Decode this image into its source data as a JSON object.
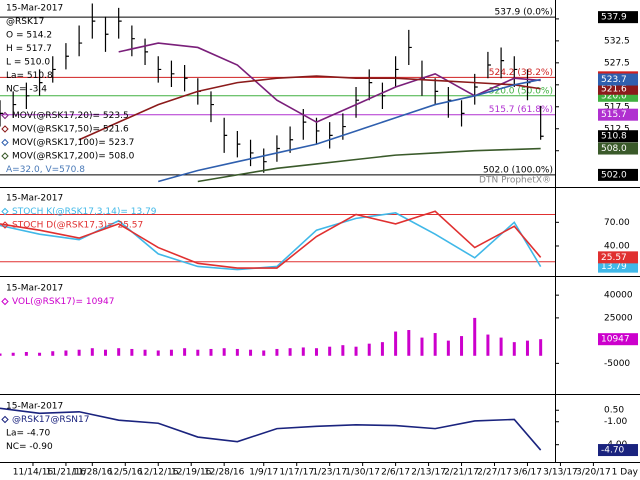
{
  "chart_data": [
    {
      "type": "ohlc",
      "header": [
        "15-Mar-2017",
        "@RSK17",
        "O = 514.2",
        "H = 517.7",
        "L = 510.0",
        "La= 510.8",
        "NC= -3.4"
      ],
      "color": "#000000",
      "x": [
        0,
        2,
        4,
        6,
        8,
        10,
        12,
        14,
        16,
        18,
        20,
        22,
        24,
        26,
        28,
        30,
        32,
        34,
        36,
        38,
        40,
        42,
        44,
        46,
        48,
        50,
        52,
        54,
        56,
        58,
        60,
        62,
        64,
        66,
        68,
        70,
        72,
        74,
        76,
        78,
        80,
        82
      ],
      "high": [
        519,
        521,
        523,
        526,
        529,
        532,
        536,
        541,
        538,
        540,
        536,
        533,
        529,
        528,
        527,
        524,
        521,
        515,
        512,
        510,
        508,
        511,
        513,
        517,
        515,
        514,
        516,
        522,
        526,
        523,
        529,
        535,
        528,
        524,
        522,
        519,
        525,
        530,
        531,
        529,
        526,
        517.7
      ],
      "low": [
        513,
        515,
        517,
        520,
        523,
        526,
        529,
        533,
        530,
        533,
        529,
        527,
        523,
        522,
        521,
        518,
        514,
        507,
        506,
        504,
        502.5,
        505,
        507,
        510,
        509,
        508,
        510,
        515,
        519,
        517,
        522,
        527,
        520,
        518,
        515,
        513,
        518,
        524,
        524,
        522,
        519,
        510.0
      ],
      "close": [
        516,
        518,
        520,
        523,
        526,
        529,
        532,
        537,
        534,
        537,
        533,
        530,
        526,
        525,
        524,
        521,
        518,
        511,
        509,
        507,
        505,
        508,
        510,
        514,
        512,
        511,
        513,
        519,
        523,
        520,
        526,
        531,
        524,
        521,
        519,
        516,
        522,
        527,
        528,
        526,
        523,
        510.8
      ],
      "series": [
        {
          "name": "MOV(@RSK17,20)= 523.5",
          "color": "#7a1f7a",
          "box": "523.5",
          "x": [
            0,
            6,
            12,
            18,
            24,
            30,
            36,
            42,
            48,
            54,
            60,
            66,
            72,
            78,
            82
          ],
          "values": [
            null,
            null,
            null,
            530,
            532,
            531,
            527,
            519,
            514,
            518,
            522,
            525,
            520,
            524,
            523.5
          ]
        },
        {
          "name": "MOV(@RSK17,50)= 521.6",
          "color": "#8b1a1a",
          "box": "521.6",
          "x": [
            0,
            6,
            12,
            18,
            24,
            30,
            36,
            42,
            48,
            54,
            60,
            66,
            72,
            78,
            82
          ],
          "values": [
            null,
            null,
            510,
            514,
            518,
            521,
            523,
            524,
            524.5,
            524,
            524,
            523.5,
            523,
            522.5,
            521.6
          ]
        },
        {
          "name": "MOV(@RSK17,100)= 523.7",
          "color": "#2f5fae",
          "box": "523.7",
          "x": [
            0,
            6,
            12,
            18,
            24,
            30,
            36,
            42,
            48,
            54,
            60,
            66,
            72,
            78,
            82
          ],
          "values": [
            null,
            null,
            null,
            null,
            500.5,
            503,
            505,
            507,
            509,
            512,
            515,
            518,
            520,
            522.5,
            523.7
          ]
        },
        {
          "name": "MOV(@RSK17,200)= 508.0",
          "color": "#3a5a2a",
          "box": "508.0",
          "x": [
            0,
            6,
            12,
            18,
            24,
            30,
            36,
            42,
            48,
            54,
            60,
            66,
            72,
            78,
            82
          ],
          "values": [
            null,
            null,
            null,
            null,
            null,
            500.5,
            502,
            503.5,
            504.5,
            505.5,
            506.5,
            507,
            507.5,
            507.8,
            508.0
          ]
        }
      ],
      "levels": [
        {
          "value": 537.9,
          "label": "537.9 (0.0%)",
          "box": "537.9",
          "color": "#000000"
        },
        {
          "value": 524.2,
          "label": "524.2 (38.2%)",
          "box": "524.2",
          "color": "#d02020"
        },
        {
          "value": 520.0,
          "label": "520.0 (50.0%)",
          "box": "520.0",
          "color": "#40b040"
        },
        {
          "value": 515.7,
          "label": "515.7 (61.8%)",
          "box": "515.7",
          "color": "#b030d0"
        },
        {
          "value": 502.0,
          "label": "502.0 (100.0%)",
          "box": "502.0",
          "color": "#000000"
        }
      ],
      "notes": [
        "A=32.0, V=570.8"
      ],
      "watermark": "DTN ProphetX®",
      "xlim": [
        0,
        91
      ],
      "ylim": [
        499.7,
        541.8
      ],
      "yticks": [
        507.5,
        512.5,
        517.5,
        522.5,
        527.5,
        532.5,
        537.5
      ]
    },
    {
      "type": "line",
      "header": [
        "15-Mar-2017"
      ],
      "series": [
        {
          "name": "STOCH K(@RSK17,3,14)= 13.79",
          "color": "#40b8e8",
          "box": "13.79",
          "x": [
            0,
            6,
            12,
            18,
            24,
            30,
            36,
            42,
            48,
            54,
            60,
            66,
            72,
            78,
            82
          ],
          "values": [
            66,
            55,
            48,
            72,
            30,
            14,
            10,
            14,
            60,
            75,
            82,
            55,
            25,
            70,
            13.79
          ]
        },
        {
          "name": "STOCH D(@RSK17,3)= 25.57",
          "color": "#e03030",
          "box": "25.57",
          "x": [
            0,
            6,
            12,
            18,
            24,
            30,
            36,
            42,
            48,
            54,
            60,
            66,
            72,
            78,
            82
          ],
          "values": [
            68,
            60,
            50,
            68,
            38,
            18,
            12,
            12,
            52,
            80,
            68,
            84,
            38,
            65,
            25.57
          ]
        }
      ],
      "levels": [
        {
          "value": 80,
          "color": "#e03030"
        },
        {
          "value": 20,
          "color": "#e03030"
        }
      ],
      "xlim": [
        0,
        91
      ],
      "ylim": [
        7,
        111
      ],
      "yticks": [
        {
          "value": 70,
          "label": "70.00"
        },
        {
          "value": 40,
          "label": "40.00"
        }
      ]
    },
    {
      "type": "bar",
      "header": [
        "15-Mar-2017"
      ],
      "series": [
        {
          "name": "VOL(@RSK17)= 10947",
          "color": "#cc00cc",
          "box": "10947",
          "x": [
            0,
            2,
            4,
            6,
            8,
            10,
            12,
            14,
            16,
            18,
            20,
            22,
            24,
            26,
            28,
            30,
            32,
            34,
            36,
            38,
            40,
            42,
            44,
            46,
            48,
            50,
            52,
            54,
            56,
            58,
            60,
            62,
            64,
            66,
            68,
            70,
            72,
            74,
            76,
            78,
            80,
            82
          ],
          "values": [
            1500,
            2000,
            2500,
            2000,
            3000,
            3500,
            4000,
            5000,
            4000,
            5000,
            4500,
            4000,
            3500,
            4000,
            5000,
            4000,
            4500,
            5000,
            4500,
            4000,
            3500,
            4500,
            5000,
            5500,
            5000,
            6000,
            7000,
            6000,
            8000,
            9000,
            16000,
            17000,
            12000,
            15000,
            10000,
            13000,
            25000,
            14000,
            12000,
            9000,
            10000,
            10947
          ]
        }
      ],
      "xlim": [
        0,
        91
      ],
      "ylim": [
        -10700,
        50000
      ],
      "yticks": [
        40000,
        25000,
        -5000
      ]
    },
    {
      "type": "line",
      "header": [
        "15-Mar-2017"
      ],
      "series": [
        {
          "name": "@RSK17@RSN17",
          "color": "#1a237e",
          "box": "-4.70",
          "x": [
            0,
            6,
            12,
            18,
            24,
            30,
            36,
            42,
            48,
            54,
            60,
            66,
            72,
            78,
            82
          ],
          "values": [
            0.76,
            0.1,
            0.3,
            -0.8,
            -1.2,
            -3.0,
            -3.6,
            -1.9,
            -1.6,
            -1.4,
            -1.5,
            -1.9,
            -0.9,
            -0.7,
            -4.7
          ]
        }
      ],
      "notes": [
        "La= -4.70",
        "NC= -0.90"
      ],
      "xlim": [
        0,
        91
      ],
      "ylim": [
        -6.0,
        2.1
      ],
      "yticks": [
        {
          "value": 0.5,
          "label": "0.50"
        },
        {
          "value": -1,
          "label": "-1.00"
        },
        {
          "value": -4,
          "label": "-4.00"
        }
      ],
      "xticks": [
        {
          "value": 5,
          "label": "11/14/16"
        },
        {
          "value": 10,
          "label": "11/21/16"
        },
        {
          "value": 14,
          "label": "11/28/16"
        },
        {
          "value": 19,
          "label": "12/5/16"
        },
        {
          "value": 24,
          "label": "12/12/16"
        },
        {
          "value": 29,
          "label": "12/19/16"
        },
        {
          "value": 34,
          "label": "12/28/16"
        },
        {
          "value": 40,
          "label": "1/9/17"
        },
        {
          "value": 45,
          "label": "1/17/17"
        },
        {
          "value": 50,
          "label": "1/23/17"
        },
        {
          "value": 55,
          "label": "1/30/17"
        },
        {
          "value": 60,
          "label": "2/6/17"
        },
        {
          "value": 65,
          "label": "2/13/17"
        },
        {
          "value": 70,
          "label": "2/21/17"
        },
        {
          "value": 75,
          "label": "2/27/17"
        },
        {
          "value": 80,
          "label": "3/6/17"
        },
        {
          "value": 85,
          "label": "3/13/17"
        },
        {
          "value": 90,
          "label": "3/20/17"
        }
      ],
      "interval": "1 Day"
    }
  ]
}
